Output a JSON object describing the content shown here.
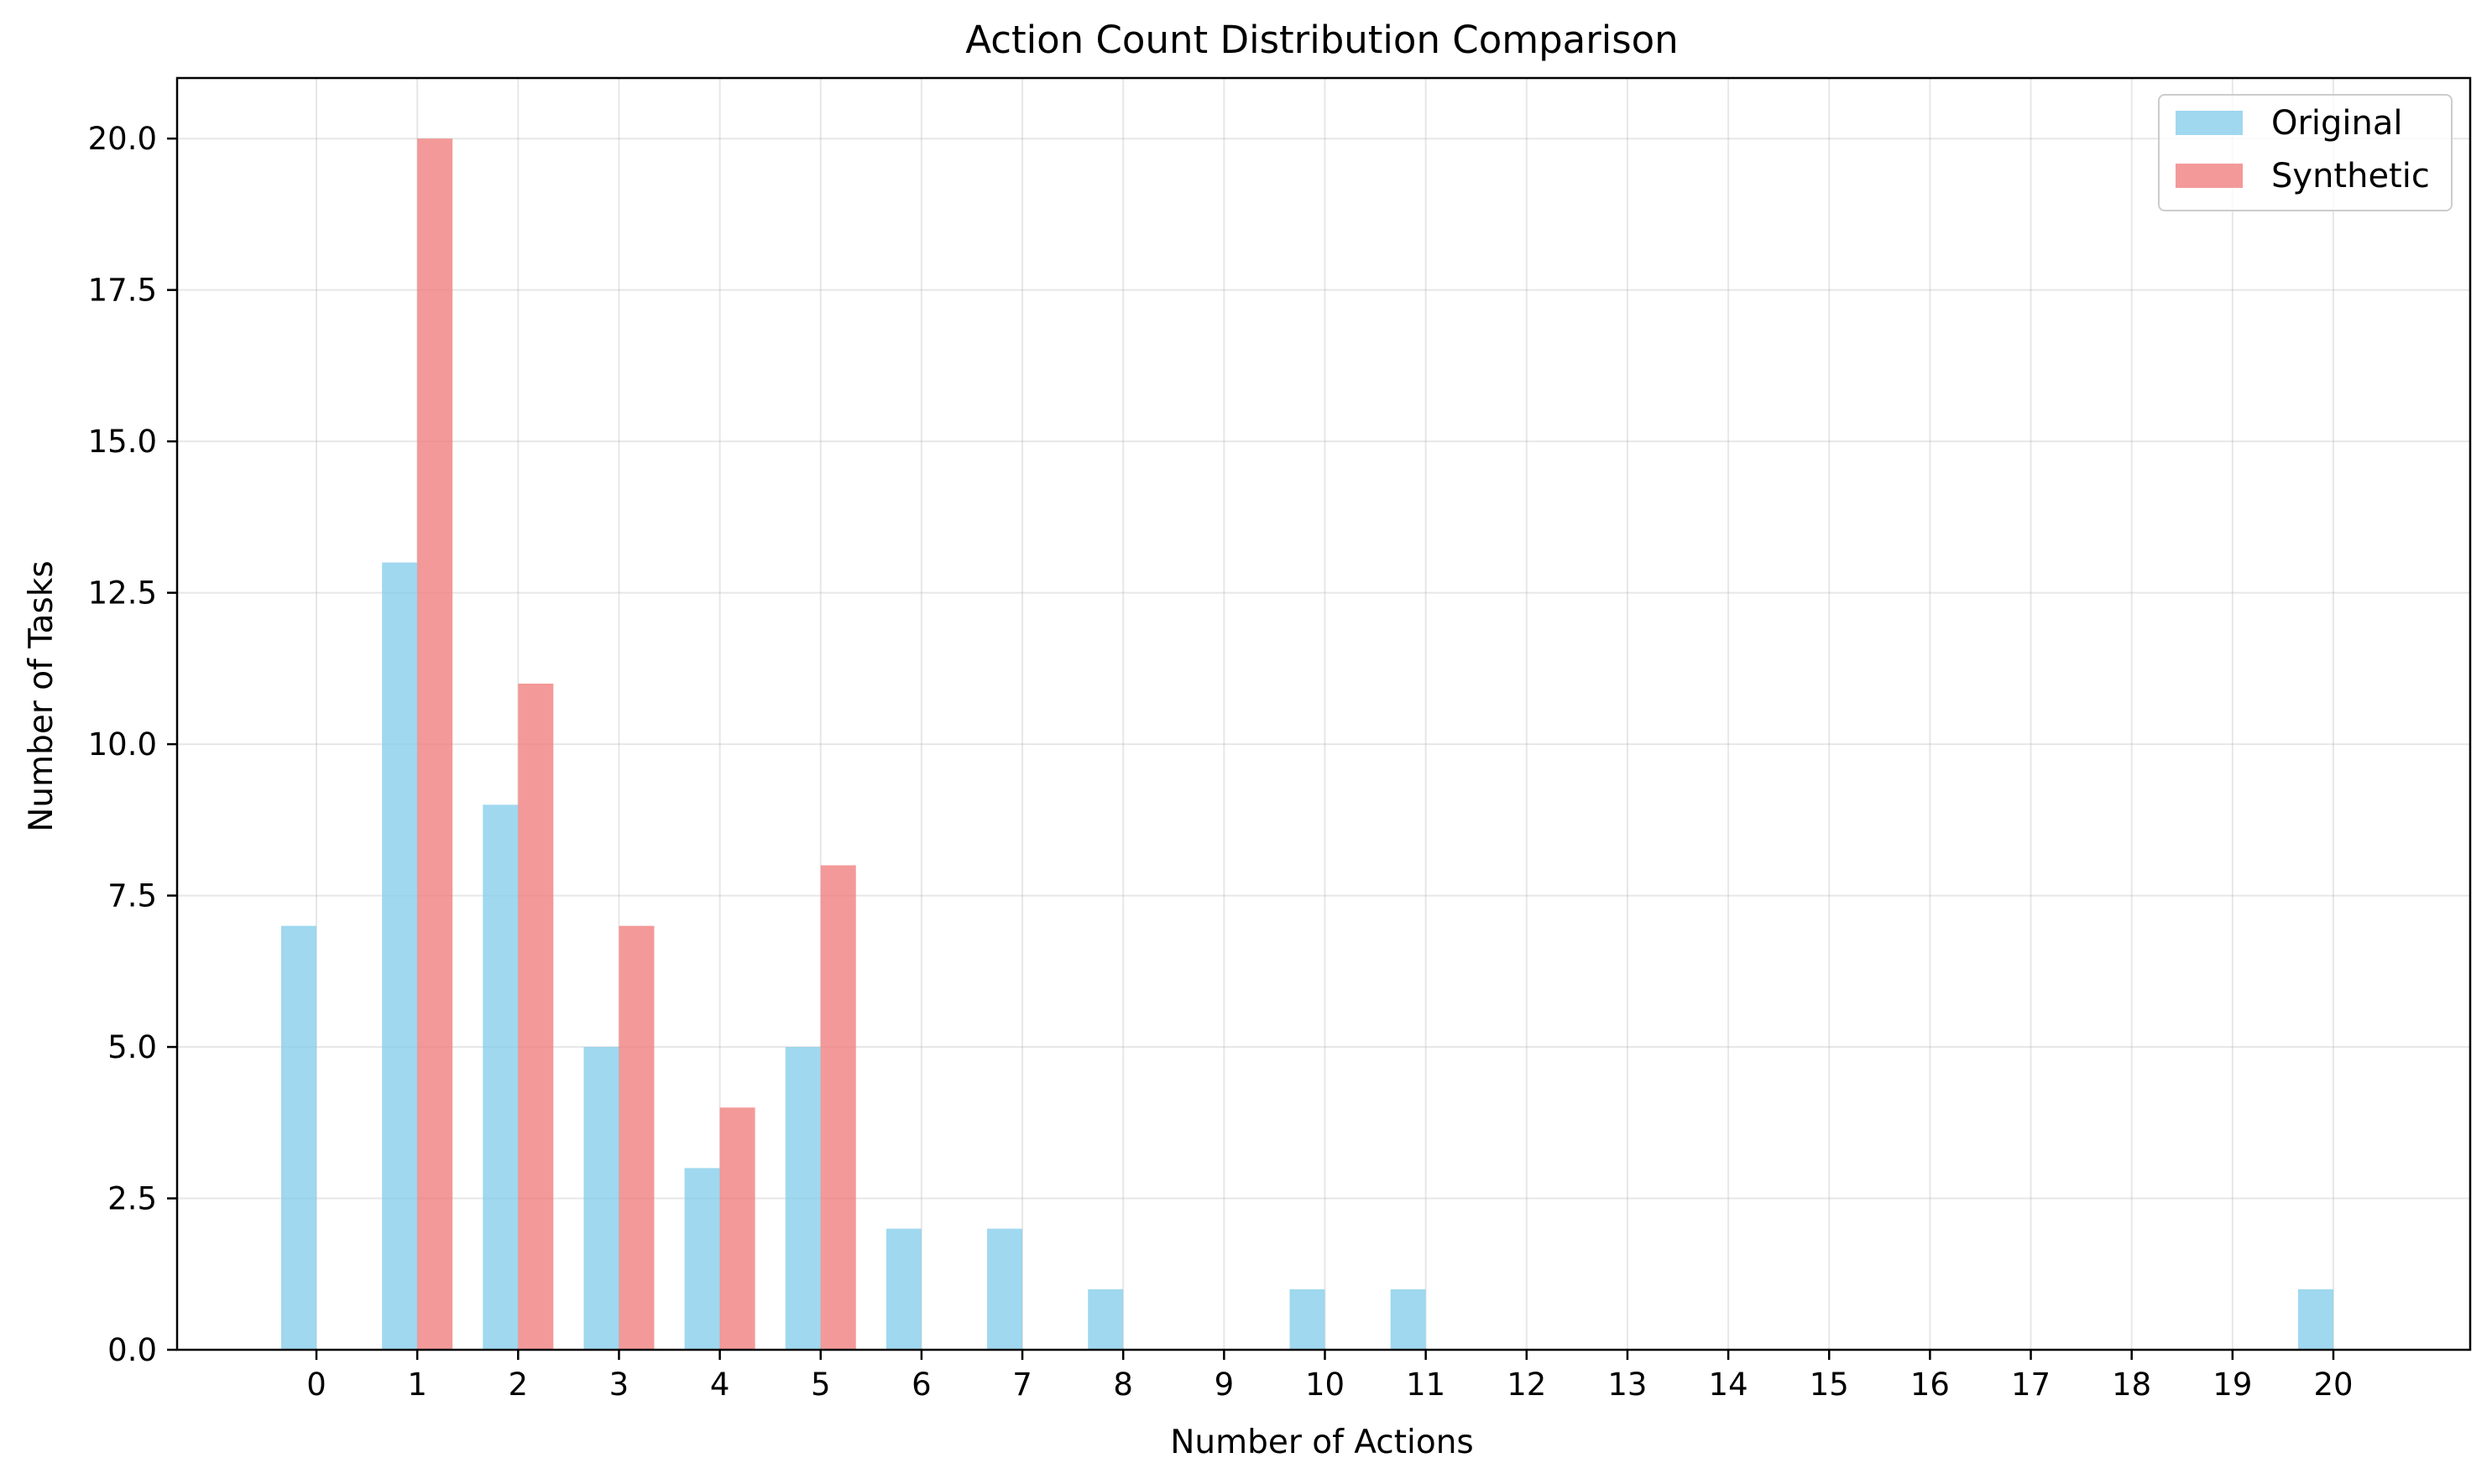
{
  "chart_data": {
    "type": "bar",
    "title": "Action Count Distribution Comparison",
    "xlabel": "Number of Actions",
    "ylabel": "Number of Tasks",
    "categories": [
      "0",
      "1",
      "2",
      "3",
      "4",
      "5",
      "6",
      "7",
      "8",
      "9",
      "10",
      "11",
      "12",
      "13",
      "14",
      "15",
      "16",
      "17",
      "18",
      "19",
      "20"
    ],
    "series": [
      {
        "name": "Original",
        "color": "#87CEEB",
        "values": [
          7,
          13,
          9,
          5,
          3,
          5,
          2,
          2,
          1,
          0,
          1,
          1,
          0,
          0,
          0,
          0,
          0,
          0,
          0,
          0,
          1
        ]
      },
      {
        "name": "Synthetic",
        "color": "#F08080",
        "values": [
          0,
          20,
          11,
          7,
          4,
          8,
          0,
          0,
          0,
          0,
          0,
          0,
          0,
          0,
          0,
          0,
          0,
          0,
          0,
          0,
          0
        ]
      }
    ],
    "ylim": [
      0,
      21
    ],
    "yticks": [
      "0.0",
      "2.5",
      "5.0",
      "7.5",
      "10.0",
      "12.5",
      "15.0",
      "17.5",
      "20.0"
    ],
    "grid": true,
    "legend_position": "top-right"
  }
}
